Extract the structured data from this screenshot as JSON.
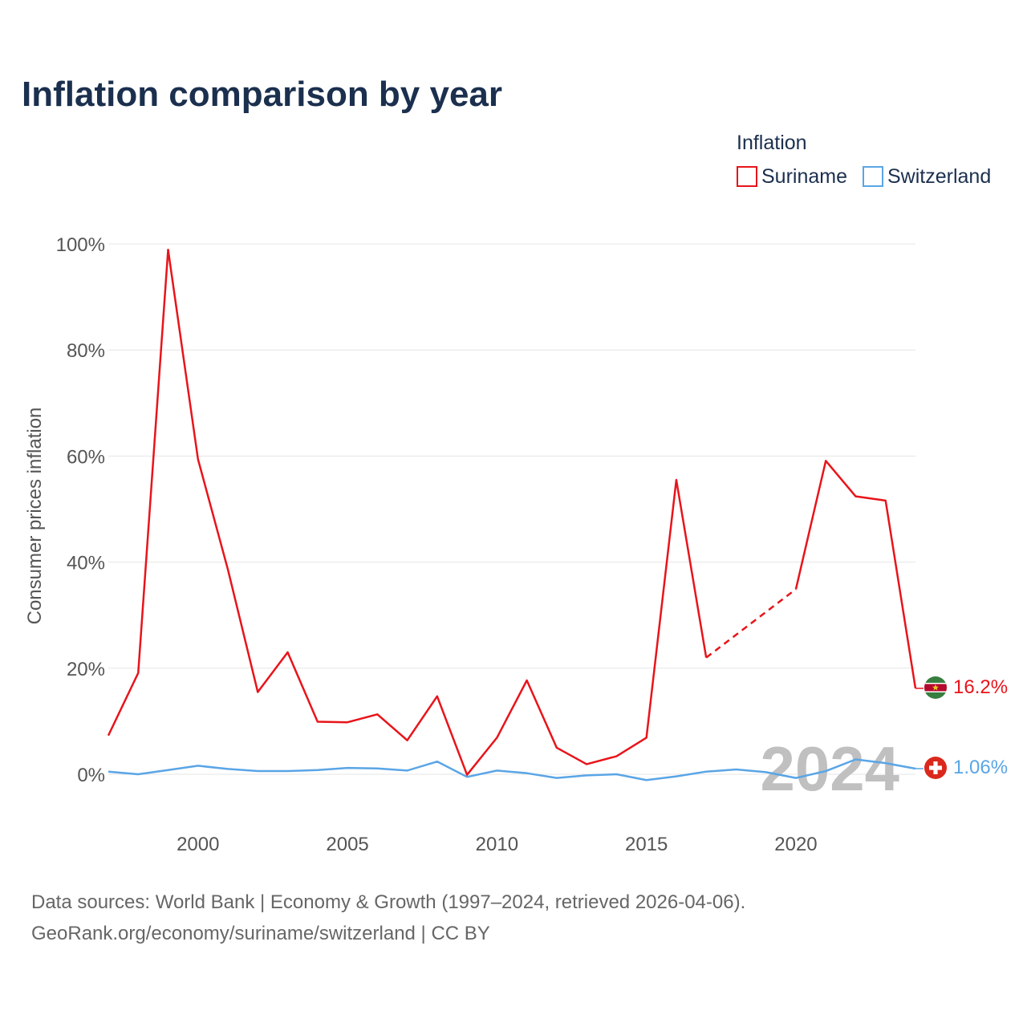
{
  "chart_data": {
    "type": "line",
    "title": "Inflation comparison by year",
    "ylabel": "Consumer prices inflation",
    "xlabel": "",
    "xlim": [
      1997,
      2024
    ],
    "ylim": [
      -10,
      100
    ],
    "x_ticks": [
      2000,
      2005,
      2010,
      2015,
      2020
    ],
    "x_tick_labels": [
      "2000",
      "2005",
      "2010",
      "2015",
      "2020"
    ],
    "y_ticks": [
      0,
      20,
      40,
      60,
      80,
      100
    ],
    "y_tick_labels": [
      "0%",
      "20%",
      "40%",
      "60%",
      "80%",
      "100%"
    ],
    "grid": true,
    "legend_title": "Inflation",
    "legend_position": "top-right",
    "watermark_year": "2024",
    "series": [
      {
        "name": "Suriname",
        "color": "#e8141a",
        "end_label": "16.2%",
        "flag": "suriname-flag",
        "points": [
          {
            "x": 1997,
            "y": 7.3
          },
          {
            "x": 1998,
            "y": 19.1
          },
          {
            "x": 1999,
            "y": 98.9
          },
          {
            "x": 2000,
            "y": 59.4
          },
          {
            "x": 2001,
            "y": 38.6
          },
          {
            "x": 2002,
            "y": 15.5
          },
          {
            "x": 2003,
            "y": 23.0
          },
          {
            "x": 2004,
            "y": 9.9
          },
          {
            "x": 2005,
            "y": 9.8
          },
          {
            "x": 2006,
            "y": 11.3
          },
          {
            "x": 2007,
            "y": 6.4
          },
          {
            "x": 2008,
            "y": 14.7
          },
          {
            "x": 2009,
            "y": -0.1
          },
          {
            "x": 2010,
            "y": 6.9
          },
          {
            "x": 2011,
            "y": 17.7
          },
          {
            "x": 2012,
            "y": 5.0
          },
          {
            "x": 2013,
            "y": 1.9
          },
          {
            "x": 2014,
            "y": 3.4
          },
          {
            "x": 2015,
            "y": 6.9
          },
          {
            "x": 2016,
            "y": 55.5
          },
          {
            "x": 2017,
            "y": 22.0
          },
          {
            "x": 2020,
            "y": 34.9
          },
          {
            "x": 2021,
            "y": 59.1
          },
          {
            "x": 2022,
            "y": 52.4
          },
          {
            "x": 2023,
            "y": 51.6
          },
          {
            "x": 2024,
            "y": 16.2
          }
        ],
        "dashed_segments": [
          [
            2017,
            2020
          ]
        ]
      },
      {
        "name": "Switzerland",
        "color": "#5aa5e6",
        "end_label": "1.06%",
        "flag": "switzerland-flag",
        "points": [
          {
            "x": 1997,
            "y": 0.5
          },
          {
            "x": 1998,
            "y": 0.0
          },
          {
            "x": 1999,
            "y": 0.8
          },
          {
            "x": 2000,
            "y": 1.6
          },
          {
            "x": 2001,
            "y": 1.0
          },
          {
            "x": 2002,
            "y": 0.6
          },
          {
            "x": 2003,
            "y": 0.6
          },
          {
            "x": 2004,
            "y": 0.8
          },
          {
            "x": 2005,
            "y": 1.2
          },
          {
            "x": 2006,
            "y": 1.1
          },
          {
            "x": 2007,
            "y": 0.7
          },
          {
            "x": 2008,
            "y": 2.4
          },
          {
            "x": 2009,
            "y": -0.5
          },
          {
            "x": 2010,
            "y": 0.7
          },
          {
            "x": 2011,
            "y": 0.2
          },
          {
            "x": 2012,
            "y": -0.7
          },
          {
            "x": 2013,
            "y": -0.2
          },
          {
            "x": 2014,
            "y": 0.0
          },
          {
            "x": 2015,
            "y": -1.1
          },
          {
            "x": 2016,
            "y": -0.4
          },
          {
            "x": 2017,
            "y": 0.5
          },
          {
            "x": 2018,
            "y": 0.9
          },
          {
            "x": 2019,
            "y": 0.4
          },
          {
            "x": 2020,
            "y": -0.7
          },
          {
            "x": 2021,
            "y": 0.6
          },
          {
            "x": 2022,
            "y": 2.8
          },
          {
            "x": 2023,
            "y": 2.1
          },
          {
            "x": 2024,
            "y": 1.06
          }
        ],
        "dashed_segments": []
      }
    ],
    "source_line_1": "Data sources: World Bank | Economy & Growth (1997–2024, retrieved 2026-04-06).",
    "source_line_2": "GeoRank.org/economy/suriname/switzerland | CC BY"
  }
}
